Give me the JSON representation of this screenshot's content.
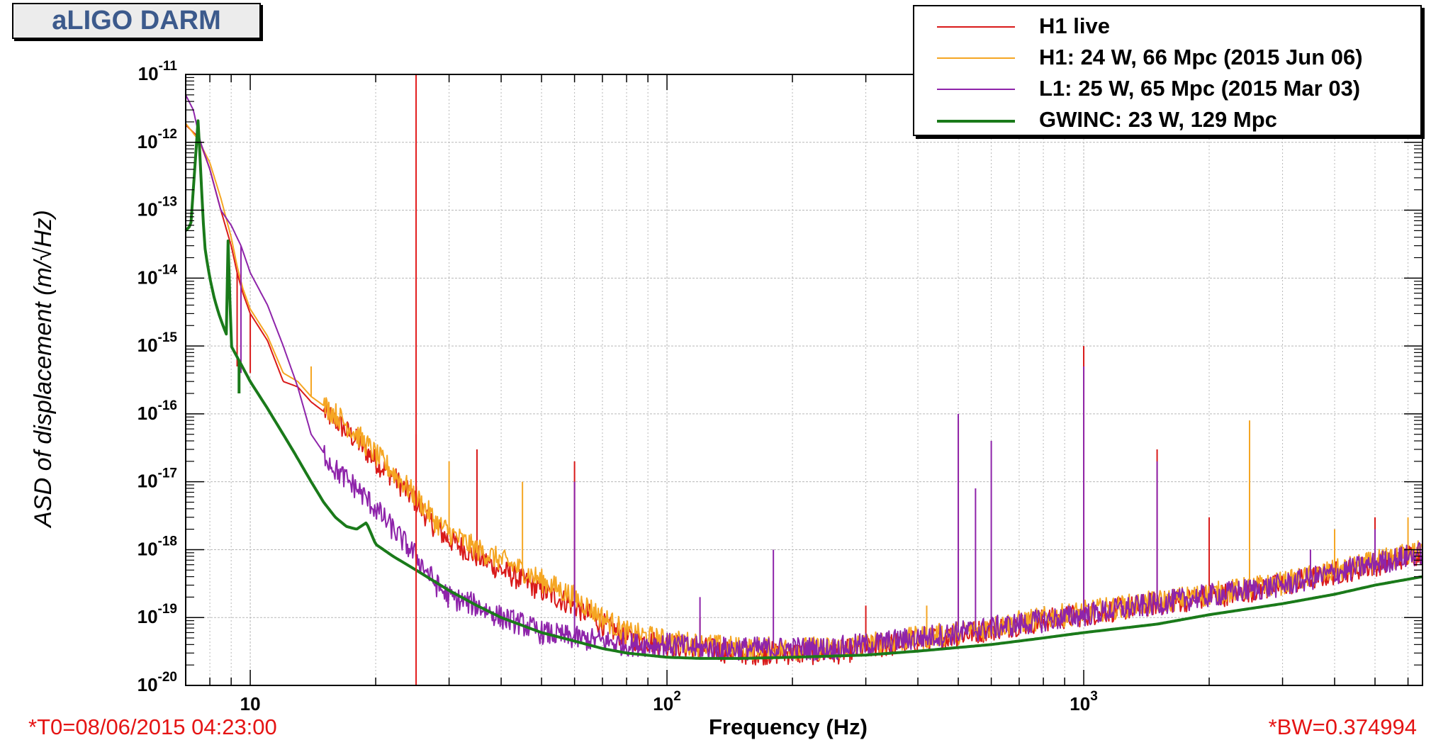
{
  "title": "aLIGO DARM",
  "footer": {
    "t0": "*T0=08/06/2015 04:23:00",
    "bw": "*BW=0.374994"
  },
  "chart_data": {
    "type": "line",
    "xlabel": "Frequency (Hz)",
    "ylabel": "ASD of displacement (m/√Hz)",
    "xscale": "log",
    "yscale": "log",
    "xlim": [
      7,
      6500
    ],
    "ylim": [
      1e-20,
      1e-11
    ],
    "grid": true,
    "legend": "top-right",
    "x_tick_labels": [
      {
        "value": 10,
        "base": "10",
        "exp": ""
      },
      {
        "value": 100,
        "base": "10",
        "exp": "2"
      },
      {
        "value": 1000,
        "base": "10",
        "exp": "3"
      }
    ],
    "y_tick_labels": [
      {
        "value": 1e-11,
        "base": "10",
        "exp": "-11"
      },
      {
        "value": 1e-12,
        "base": "10",
        "exp": "-12"
      },
      {
        "value": 1e-13,
        "base": "10",
        "exp": "-13"
      },
      {
        "value": 1e-14,
        "base": "10",
        "exp": "-14"
      },
      {
        "value": 1e-15,
        "base": "10",
        "exp": "-15"
      },
      {
        "value": 1e-16,
        "base": "10",
        "exp": "-16"
      },
      {
        "value": 1e-17,
        "base": "10",
        "exp": "-17"
      },
      {
        "value": 1e-18,
        "base": "10",
        "exp": "-18"
      },
      {
        "value": 1e-19,
        "base": "10",
        "exp": "-19"
      },
      {
        "value": 1e-20,
        "base": "10",
        "exp": "-20"
      }
    ],
    "marker_line": {
      "x": 25,
      "color": "#e31a1c"
    },
    "series": [
      {
        "name": "H1 live",
        "color": "#d91a1a",
        "width": 2,
        "x": [
          7,
          7.5,
          8,
          8.5,
          9,
          9.3,
          9.6,
          10,
          11,
          12,
          13,
          14,
          16,
          18,
          20,
          22,
          25,
          28,
          30,
          35,
          40,
          45,
          50,
          60,
          70,
          80,
          100,
          120,
          150,
          200,
          250,
          300,
          400,
          500,
          700,
          1000,
          1500,
          2000,
          3000,
          4000,
          5000,
          6000,
          6500
        ],
        "y": [
          1.8e-12,
          1.2e-12,
          4e-13,
          1e-13,
          3e-14,
          1.2e-14,
          6e-15,
          3e-15,
          1.2e-15,
          3e-16,
          2.5e-16,
          1.5e-16,
          8e-17,
          4e-17,
          2e-17,
          1.2e-17,
          5e-18,
          2e-18,
          1.4e-18,
          8e-19,
          5e-19,
          3.5e-19,
          2.5e-19,
          1.5e-19,
          8e-20,
          5e-20,
          4e-20,
          3.5e-20,
          3e-20,
          3e-20,
          3e-20,
          3.5e-20,
          4.5e-20,
          5.5e-20,
          8e-20,
          1.1e-19,
          1.6e-19,
          2e-19,
          3e-19,
          4.5e-19,
          6e-19,
          8e-19,
          9e-19
        ],
        "peaks": [
          [
            9.3,
            5e-16
          ],
          [
            10,
            4e-16
          ],
          [
            25,
            5e-17
          ],
          [
            35,
            3e-17
          ],
          [
            60,
            2e-17
          ],
          [
            120,
            1e-19
          ],
          [
            300,
            1.5e-19
          ],
          [
            500,
            8e-17
          ],
          [
            1000,
            1e-15
          ],
          [
            1500,
            3e-17
          ],
          [
            2000,
            3e-18
          ],
          [
            5000,
            3e-18
          ]
        ]
      },
      {
        "name": "H1: 24 W, 66 Mpc (2015 Jun 06)",
        "color": "#f5a623",
        "width": 2,
        "x": [
          7,
          7.5,
          8,
          8.5,
          9,
          9.3,
          9.6,
          10,
          11,
          12,
          13,
          14,
          16,
          18,
          20,
          22,
          25,
          28,
          30,
          35,
          40,
          45,
          50,
          60,
          70,
          80,
          100,
          120,
          150,
          200,
          250,
          300,
          400,
          500,
          700,
          1000,
          1500,
          2000,
          3000,
          4000,
          5000,
          6000,
          6500
        ],
        "y": [
          1.9e-12,
          1.1e-12,
          5e-13,
          1.5e-13,
          4e-14,
          1.5e-14,
          7e-15,
          3.5e-15,
          1.4e-15,
          4e-16,
          3e-16,
          1.8e-16,
          1e-16,
          5e-17,
          2.5e-17,
          1.4e-17,
          6e-18,
          2.5e-18,
          1.8e-18,
          1e-18,
          7e-19,
          5e-19,
          3.5e-19,
          2e-19,
          1e-19,
          6e-20,
          4.5e-20,
          4e-20,
          3.5e-20,
          3.5e-20,
          3.5e-20,
          4e-20,
          5e-20,
          6e-20,
          8.5e-20,
          1.2e-19,
          1.7e-19,
          2.2e-19,
          3.2e-19,
          4.8e-19,
          6.5e-19,
          8.5e-19,
          9.5e-19
        ],
        "peaks": [
          [
            14,
            5e-16
          ],
          [
            30,
            2e-17
          ],
          [
            45,
            1e-17
          ],
          [
            420,
            1.5e-19
          ],
          [
            500,
            8e-17
          ],
          [
            1000,
            5e-16
          ],
          [
            2500,
            8e-17
          ],
          [
            4000,
            2e-18
          ],
          [
            6000,
            3e-18
          ]
        ]
      },
      {
        "name": "L1: 25 W, 65 Mpc (2015 Mar 03)",
        "color": "#8e24aa",
        "width": 2,
        "x": [
          7,
          7.3,
          7.6,
          8,
          8.5,
          9,
          9.5,
          10,
          11,
          12,
          13,
          14,
          16,
          18,
          20,
          22,
          25,
          28,
          30,
          35,
          40,
          45,
          50,
          60,
          70,
          80,
          100,
          120,
          150,
          200,
          250,
          300,
          400,
          500,
          700,
          1000,
          1500,
          2000,
          3000,
          4000,
          5000,
          6000,
          6500
        ],
        "y": [
          5e-12,
          3e-12,
          1e-12,
          4e-13,
          1e-13,
          6e-14,
          3e-14,
          1.2e-14,
          4e-15,
          1e-15,
          2.5e-16,
          5e-17,
          1.5e-17,
          8e-18,
          4e-18,
          2e-18,
          8e-19,
          3e-19,
          2e-19,
          1.5e-19,
          1e-19,
          8e-20,
          6e-20,
          5e-20,
          4.5e-20,
          4e-20,
          4e-20,
          3.5e-20,
          3.5e-20,
          3.5e-20,
          3.5e-20,
          4e-20,
          5e-20,
          6e-20,
          8e-20,
          1.1e-19,
          1.6e-19,
          2.1e-19,
          3e-19,
          4.5e-19,
          6.2e-19,
          8e-19,
          9e-19
        ],
        "peaks": [
          [
            9.5,
            4e-16
          ],
          [
            60,
            1e-17
          ],
          [
            120,
            2e-19
          ],
          [
            180,
            1e-18
          ],
          [
            500,
            1e-16
          ],
          [
            550,
            8e-18
          ],
          [
            600,
            4e-17
          ],
          [
            1000,
            5e-16
          ],
          [
            1500,
            2e-17
          ],
          [
            3500,
            1e-18
          ],
          [
            5000,
            2e-18
          ]
        ]
      },
      {
        "name": "GWINC: 23 W, 129 Mpc",
        "color": "#1a7a1a",
        "width": 4,
        "x": [
          7,
          7.2,
          7.5,
          7.7,
          7.8,
          8,
          8.2,
          8.4,
          8.6,
          8.8,
          8.85,
          9,
          10,
          11,
          12,
          13,
          14,
          15,
          16,
          17,
          18,
          19,
          20,
          22,
          25,
          30,
          35,
          40,
          50,
          60,
          70,
          80,
          100,
          120,
          150,
          200,
          300,
          400,
          600,
          800,
          1000,
          1500,
          2000,
          3000,
          4000,
          5000,
          6500
        ],
        "y": [
          5e-14,
          6e-14,
          2.2e-12,
          8e-14,
          2.5e-14,
          1e-14,
          5e-15,
          3e-15,
          2e-15,
          1.4e-15,
          4e-14,
          1e-15,
          3e-16,
          1.2e-16,
          5e-17,
          2.2e-17,
          1e-17,
          5e-18,
          3e-18,
          2.2e-18,
          2e-18,
          2.5e-18,
          1.2e-18,
          8e-19,
          5e-19,
          2.5e-19,
          1.5e-19,
          1e-19,
          6e-20,
          4.5e-20,
          3.5e-20,
          3e-20,
          2.6e-20,
          2.5e-20,
          2.5e-20,
          2.6e-20,
          2.8e-20,
          3.2e-20,
          4e-20,
          5e-20,
          6e-20,
          8e-20,
          1.1e-19,
          1.6e-19,
          2.2e-19,
          3e-19,
          4e-19
        ],
        "peaks": [
          [
            9.4,
            2e-16
          ]
        ]
      }
    ]
  }
}
